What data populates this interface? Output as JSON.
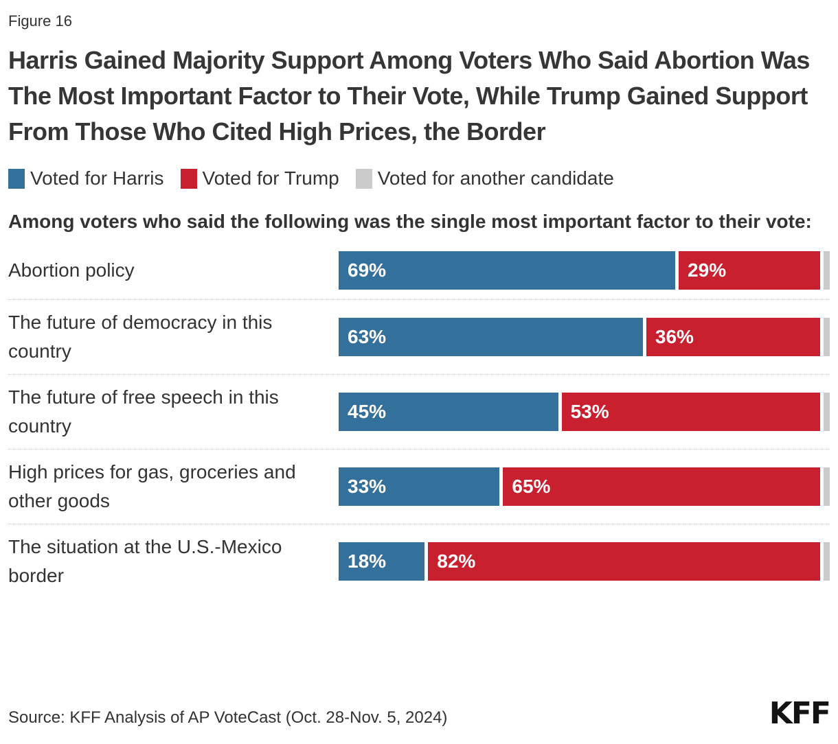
{
  "figure_label": "Figure 16",
  "title": "Harris Gained Majority Support Among Voters Who Said Abortion Was The Most Important Factor to Their Vote, While Trump Gained Support From Those Who Cited High Prices, the Border",
  "legend": {
    "harris": {
      "label": "Voted for Harris",
      "color": "#33719C"
    },
    "trump": {
      "label": "Voted for Trump",
      "color": "#C9202F"
    },
    "other": {
      "label": "Voted for another candidate",
      "color": "#CBCBCB"
    }
  },
  "subtitle": "Among voters who said the following was the single most important factor to their vote:",
  "chart_data": {
    "type": "bar",
    "orientation": "horizontal",
    "stacked": true,
    "unit": "%",
    "xlim": [
      0,
      100
    ],
    "legend_position": "top",
    "grid": false,
    "categories": [
      "Abortion policy",
      "The future of democracy in this country",
      "The future of free speech in this country",
      "High prices for gas, groceries and other goods",
      "The situation at the U.S.-Mexico border"
    ],
    "series": [
      {
        "name": "Voted for Harris",
        "color": "#33719C",
        "values": [
          69,
          63,
          45,
          33,
          18
        ]
      },
      {
        "name": "Voted for Trump",
        "color": "#C9202F",
        "values": [
          29,
          36,
          53,
          65,
          82
        ]
      },
      {
        "name": "Voted for another candidate",
        "color": "#CBCBCB",
        "values": [
          2,
          1,
          2,
          2,
          0
        ]
      }
    ],
    "rows": [
      {
        "label": "Abortion policy",
        "harris": 69,
        "trump": 29,
        "other": 2,
        "harris_label": "69%",
        "trump_label": "29%"
      },
      {
        "label": "The future of democracy in this country",
        "harris": 63,
        "trump": 36,
        "other": 1,
        "harris_label": "63%",
        "trump_label": "36%"
      },
      {
        "label": "The future of free speech in this country",
        "harris": 45,
        "trump": 53,
        "other": 2,
        "harris_label": "45%",
        "trump_label": "53%"
      },
      {
        "label": "High prices for gas, groceries and other goods",
        "harris": 33,
        "trump": 65,
        "other": 2,
        "harris_label": "33%",
        "trump_label": "65%"
      },
      {
        "label": "The situation at the U.S.-Mexico border",
        "harris": 18,
        "trump": 82,
        "other": 0,
        "harris_label": "18%",
        "trump_label": "82%"
      }
    ]
  },
  "source": "Source: KFF Analysis of AP VoteCast (Oct. 28-Nov. 5, 2024)",
  "logo": "KFF"
}
